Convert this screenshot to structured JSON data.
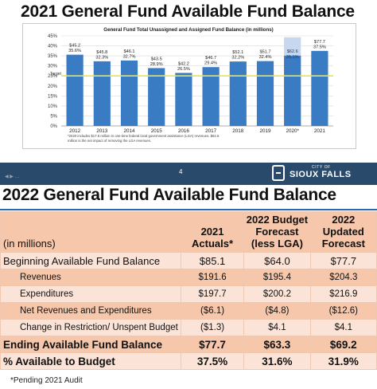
{
  "slide1": {
    "title": "2021 General Fund Available Fund Balance",
    "page_number": "4",
    "nav_hint": "◀ ▶ …",
    "logo_small": "CITY OF",
    "logo_big": "SIOUX FALLS",
    "logo_icon": "sioux-falls-logo-icon"
  },
  "chart_data": {
    "type": "bar",
    "title": "General Fund Total Unassigned and Assigned Fund Balance (in millions)",
    "categories": [
      "2012",
      "2013",
      "2014",
      "2015",
      "2016",
      "2017",
      "2018",
      "2019",
      "2020*",
      "2021"
    ],
    "series": [
      {
        "values": [
          35.6,
          32.3,
          32.7,
          28.9,
          26.5,
          29.4,
          32.2,
          32.4,
          35.1,
          37.5
        ],
        "amount_labels": [
          "$45.2",
          "$45.8",
          "$46.1",
          "$43.5",
          "$42.2",
          "$46.7",
          "$52.1",
          "$51.7",
          "$62.6",
          "$77.7"
        ],
        "percent_labels": [
          "35.6%",
          "32.3%",
          "32.7%",
          "28.9%",
          "26.5%",
          "29.4%",
          "32.2%",
          "32.4%",
          "35.1%",
          "37.5%"
        ]
      }
    ],
    "lga_highlight": {
      "category": "2020*",
      "top_value": 44.3
    },
    "target_line": {
      "label": "Target",
      "value": 25
    },
    "ylim": [
      0,
      45
    ],
    "yticks": [
      "0%",
      "5%",
      "10%",
      "15%",
      "20%",
      "25%",
      "30%",
      "35%",
      "40%",
      "45%"
    ],
    "ytick_values": [
      0,
      5,
      10,
      15,
      20,
      25,
      30,
      35,
      40,
      45
    ],
    "grid": true,
    "bar_color": "#3a7cc4",
    "highlight_color": "#c6d7ee",
    "target_color": "#e8e34a",
    "footnote": "*2020 includes $17.5 million in one-time federal local government assistance (LGA) revenues. $62.6 million is the net impact of removing the LGA revenues."
  },
  "slide2": {
    "title": "2022 General Fund Available Fund Balance",
    "header": {
      "units": "(in millions)",
      "col1": [
        "2021",
        "Actuals*"
      ],
      "col2": [
        "2022 Budget",
        "Forecast",
        "(less LGA)"
      ],
      "col3": [
        "2022",
        "Updated",
        "Forecast"
      ]
    },
    "rows": [
      {
        "label": "Beginning Available Fund Balance",
        "values": [
          "$85.1",
          "$64.0",
          "$77.7"
        ]
      },
      {
        "label": "Revenues",
        "values": [
          "$191.6",
          "$195.4",
          "$204.3"
        ]
      },
      {
        "label": "Expenditures",
        "values": [
          "$197.7",
          "$200.2",
          "$216.9"
        ]
      },
      {
        "label": "Net Revenues and Expenditures",
        "values": [
          "($6.1)",
          "($4.8)",
          "($12.6)"
        ]
      },
      {
        "label": "Change in Restriction/ Unspent Budget",
        "values": [
          "($1.3)",
          "$4.1",
          "$4.1"
        ]
      },
      {
        "label": "Ending Available Fund Balance",
        "values": [
          "$77.7",
          "$63.3",
          "$69.2"
        ]
      },
      {
        "label": "% Available to Budget",
        "values": [
          "37.5%",
          "31.6%",
          "31.9%"
        ]
      }
    ],
    "note": "*Pending 2021 Audit"
  }
}
